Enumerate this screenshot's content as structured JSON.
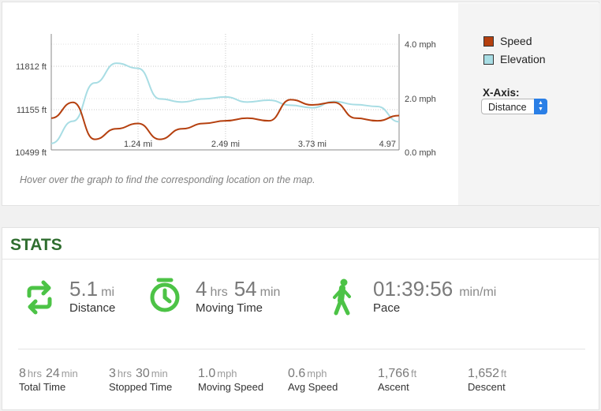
{
  "chart": {
    "legend": {
      "speed_label": "Speed",
      "elevation_label": "Elevation",
      "speed_color": "#b5400f",
      "elevation_color": "#a8dde4"
    },
    "xaxis_select_label": "X-Axis:",
    "xaxis_select_value": "Distance",
    "hover_note": "Hover over the graph to find the corresponding location on the map."
  },
  "chart_data": {
    "type": "line",
    "x": [
      0,
      0.31,
      0.62,
      0.93,
      1.24,
      1.55,
      1.87,
      2.18,
      2.49,
      2.8,
      3.11,
      3.42,
      3.73,
      4.04,
      4.35,
      4.66,
      4.97
    ],
    "xticks": [
      "1.24 mi",
      "2.49 mi",
      "3.73 mi",
      "4.97"
    ],
    "left_axis": {
      "ticks": [
        "11812 ft",
        "11155 ft",
        "10499 ft"
      ],
      "range": [
        10499,
        11812
      ]
    },
    "right_axis": {
      "ticks": [
        "4.0 mph",
        "2.0 mph",
        "0.0 mph"
      ],
      "range": [
        0,
        4.0
      ]
    },
    "series": [
      {
        "name": "Speed",
        "axis": "right",
        "values": [
          1.2,
          1.8,
          0.4,
          0.8,
          1.0,
          0.4,
          0.8,
          1.0,
          1.1,
          1.2,
          1.1,
          1.9,
          1.7,
          1.8,
          1.2,
          1.1,
          1.3
        ]
      },
      {
        "name": "Elevation",
        "axis": "left",
        "values": [
          10600,
          10950,
          11550,
          11860,
          11780,
          11300,
          11250,
          11300,
          11330,
          11250,
          11280,
          11200,
          11160,
          11260,
          11210,
          11180,
          10940
        ]
      }
    ],
    "grid": true,
    "legend_position": "right"
  },
  "stats": {
    "title": "STATS",
    "distance": {
      "value": "5.1",
      "unit": "mi",
      "label": "Distance"
    },
    "moving_time": {
      "hrs": "4",
      "hrs_unit": "hrs",
      "min": "54",
      "min_unit": "min",
      "label": "Moving Time"
    },
    "pace": {
      "value": "01:39:56",
      "unit": "min/mi",
      "label": "Pace"
    },
    "total_time": {
      "hrs": "8",
      "hrs_unit": "hrs",
      "min": "24",
      "min_unit": "min",
      "label": "Total Time"
    },
    "stopped_time": {
      "hrs": "3",
      "hrs_unit": "hrs",
      "min": "30",
      "min_unit": "min",
      "label": "Stopped Time"
    },
    "moving_speed": {
      "value": "1.0",
      "unit": "mph",
      "label": "Moving Speed"
    },
    "avg_speed": {
      "value": "0.6",
      "unit": "mph",
      "label": "Avg Speed"
    },
    "ascent": {
      "value": "1,766",
      "unit": "ft",
      "label": "Ascent"
    },
    "descent": {
      "value": "1,652",
      "unit": "ft",
      "label": "Descent"
    },
    "icon_color": "#4cc346"
  }
}
